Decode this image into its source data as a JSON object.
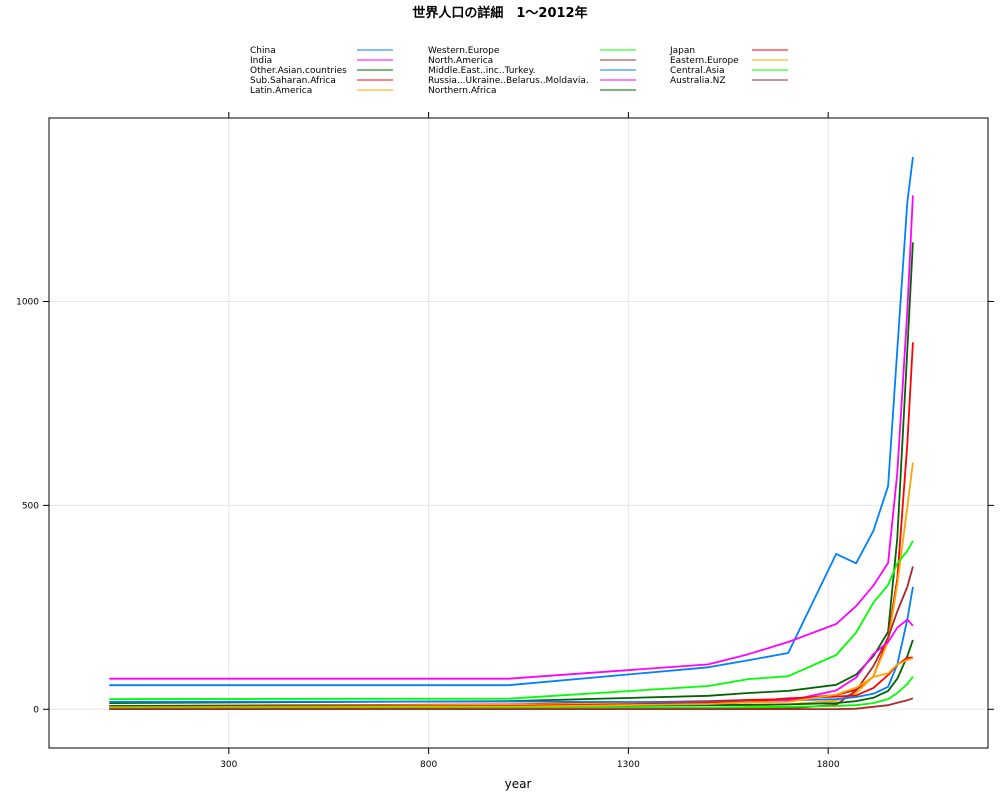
{
  "chart_data": {
    "type": "line",
    "title": "世界人口の詳細　1〜2012年",
    "xlabel": "year",
    "ylabel": "",
    "xlim": [
      -150,
      2200
    ],
    "ylim": [
      -95,
      1450
    ],
    "xticks": [
      300,
      800,
      1300,
      1800
    ],
    "yticks": [
      0,
      500,
      1000
    ],
    "grid": true,
    "legend_position": "top",
    "legend_columns": [
      [
        "China",
        "India",
        "Other.Asian.countries",
        "Sub.Saharan.Africa",
        "Latin.America"
      ],
      [
        "Western.Europe",
        "North.America",
        "Middle.East..inc..Turkey.",
        "Russia...Ukraine..Belarus..Moldavia.",
        "Northern.Africa"
      ],
      [
        "Japan",
        "Eastern.Europe",
        "Central.Asia",
        "Australia.NZ"
      ]
    ],
    "x": [
      1,
      1000,
      1500,
      1600,
      1700,
      1820,
      1870,
      1913,
      1950,
      1973,
      1998,
      2012
    ],
    "series": [
      {
        "name": "China",
        "color": "#0080ff",
        "values": [
          59,
          59,
          103,
          120,
          138,
          381,
          358,
          437,
          547,
          882,
          1243,
          1354
        ]
      },
      {
        "name": "India",
        "color": "#ff00ff",
        "values": [
          75,
          75,
          110,
          135,
          165,
          209,
          253,
          303,
          359,
          580,
          975,
          1260
        ]
      },
      {
        "name": "Other.Asian.countries",
        "color": "#006400",
        "values": [
          15,
          20,
          33,
          40,
          45,
          60,
          85,
          130,
          190,
          420,
          880,
          1145
        ]
      },
      {
        "name": "Sub.Saharan.Africa",
        "color": "#ff0000",
        "values": [
          8,
          12,
          20,
          23,
          25,
          35,
          48,
          80,
          175,
          320,
          650,
          900
        ]
      },
      {
        "name": "Latin.America",
        "color": "#ffa500",
        "values": [
          6,
          11,
          17,
          9,
          12,
          21,
          40,
          80,
          166,
          307,
          495,
          605
        ]
      },
      {
        "name": "Western.Europe",
        "color": "#00ff00",
        "values": [
          25,
          26,
          57,
          74,
          81,
          133,
          188,
          261,
          305,
          358,
          388,
          413
        ]
      },
      {
        "name": "North.America",
        "color": "#a52a2a",
        "values": [
          1,
          2,
          2,
          2,
          2,
          11,
          46,
          105,
          176,
          240,
          300,
          350
        ]
      },
      {
        "name": "Middle.East..inc..Turkey.",
        "color": "#0080ff",
        "values": [
          18,
          19,
          17,
          20,
          22,
          25,
          30,
          38,
          55,
          110,
          220,
          300
        ]
      },
      {
        "name": "Russia...Ukraine..Belarus..Moldavia.",
        "color": "#ff00ff",
        "values": [
          4,
          7,
          13,
          17,
          21,
          46,
          78,
          135,
          165,
          200,
          220,
          205
        ]
      },
      {
        "name": "Northern.Africa",
        "color": "#006400",
        "values": [
          8,
          7,
          10,
          11,
          12,
          15,
          20,
          28,
          45,
          75,
          130,
          170
        ]
      },
      {
        "name": "Japan",
        "color": "#ff0000",
        "values": [
          3,
          8,
          15,
          19,
          27,
          31,
          34,
          52,
          84,
          109,
          126,
          127
        ]
      },
      {
        "name": "Eastern.Europe",
        "color": "#ffa500",
        "values": [
          5,
          6,
          13,
          17,
          18,
          36,
          53,
          79,
          88,
          110,
          121,
          125
        ]
      },
      {
        "name": "Central.Asia",
        "color": "#00ff00",
        "values": [
          2,
          3,
          4,
          5,
          6,
          8,
          10,
          15,
          25,
          40,
          62,
          80
        ]
      },
      {
        "name": "Australia.NZ",
        "color": "#a52a2a",
        "values": [
          0.5,
          0.5,
          0.5,
          0.5,
          0.5,
          0.5,
          1.5,
          6,
          10,
          16,
          22,
          27
        ]
      }
    ]
  }
}
